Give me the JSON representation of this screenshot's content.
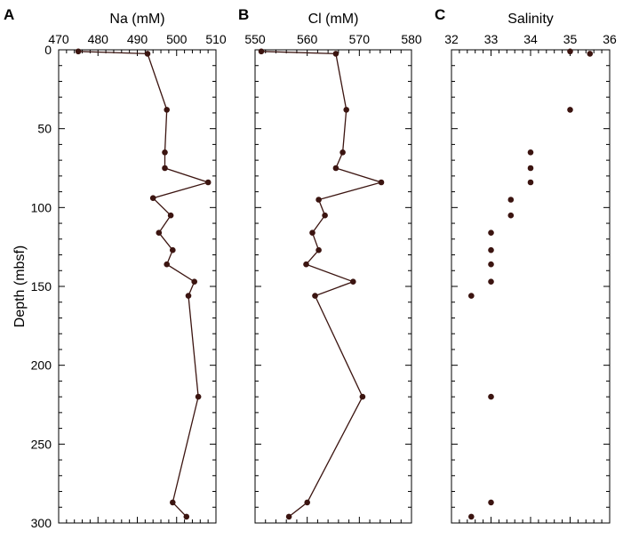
{
  "figure": {
    "y_axis_label": "Depth (mbsf)",
    "marker_color": "#3b1410"
  },
  "chart_data": [
    {
      "type": "line",
      "panel": "A",
      "xlabel": "Na (mM)",
      "ylabel": "Depth (mbsf)",
      "x_axis_position": "top",
      "xlim": [
        470,
        510
      ],
      "ylim": [
        300,
        0
      ],
      "x_ticks": [
        470,
        480,
        490,
        500,
        510
      ],
      "y_ticks": [
        0,
        50,
        100,
        150,
        200,
        250,
        300
      ],
      "grid": false,
      "markers": true,
      "connect": true,
      "points": [
        {
          "x": 475,
          "y": 1
        },
        {
          "x": 492.6,
          "y": 2.5
        },
        {
          "x": 497.5,
          "y": 38
        },
        {
          "x": 497,
          "y": 65
        },
        {
          "x": 497,
          "y": 75
        },
        {
          "x": 508,
          "y": 84
        },
        {
          "x": 494,
          "y": 94
        },
        {
          "x": 498.5,
          "y": 105
        },
        {
          "x": 495.5,
          "y": 116
        },
        {
          "x": 499,
          "y": 127
        },
        {
          "x": 497.5,
          "y": 136
        },
        {
          "x": 504.5,
          "y": 147
        },
        {
          "x": 503,
          "y": 156
        },
        {
          "x": 505.5,
          "y": 220
        },
        {
          "x": 499,
          "y": 287
        },
        {
          "x": 502.5,
          "y": 296
        }
      ]
    },
    {
      "type": "line",
      "panel": "B",
      "xlabel": "Cl (mM)",
      "ylabel": "",
      "x_axis_position": "top",
      "xlim": [
        550,
        580
      ],
      "ylim": [
        300,
        0
      ],
      "x_ticks": [
        550,
        560,
        570,
        580
      ],
      "y_ticks": [
        0,
        50,
        100,
        150,
        200,
        250,
        300
      ],
      "grid": false,
      "markers": true,
      "connect": true,
      "points": [
        {
          "x": 551.2,
          "y": 1
        },
        {
          "x": 565.5,
          "y": 2.5
        },
        {
          "x": 567.5,
          "y": 38
        },
        {
          "x": 566.8,
          "y": 65
        },
        {
          "x": 565.5,
          "y": 75
        },
        {
          "x": 574.2,
          "y": 84
        },
        {
          "x": 562.2,
          "y": 95
        },
        {
          "x": 563.4,
          "y": 105
        },
        {
          "x": 561,
          "y": 116
        },
        {
          "x": 562.2,
          "y": 127
        },
        {
          "x": 559.8,
          "y": 136
        },
        {
          "x": 568.8,
          "y": 147
        },
        {
          "x": 561.5,
          "y": 156
        },
        {
          "x": 570.6,
          "y": 220
        },
        {
          "x": 560,
          "y": 287
        },
        {
          "x": 556.5,
          "y": 296
        }
      ]
    },
    {
      "type": "scatter",
      "panel": "C",
      "xlabel": "Salinity",
      "ylabel": "",
      "x_axis_position": "top",
      "xlim": [
        32,
        36
      ],
      "ylim": [
        300,
        0
      ],
      "x_ticks": [
        32,
        33,
        34,
        35,
        36
      ],
      "y_ticks": [
        0,
        50,
        100,
        150,
        200,
        250,
        300
      ],
      "grid": false,
      "markers": true,
      "connect": false,
      "points": [
        {
          "x": 35,
          "y": 1
        },
        {
          "x": 35.5,
          "y": 2.5
        },
        {
          "x": 35,
          "y": 38
        },
        {
          "x": 34,
          "y": 65
        },
        {
          "x": 34,
          "y": 75
        },
        {
          "x": 34,
          "y": 84
        },
        {
          "x": 33.5,
          "y": 95
        },
        {
          "x": 33.5,
          "y": 105
        },
        {
          "x": 33,
          "y": 116
        },
        {
          "x": 33,
          "y": 127
        },
        {
          "x": 33,
          "y": 136
        },
        {
          "x": 33,
          "y": 147
        },
        {
          "x": 32.5,
          "y": 156
        },
        {
          "x": 33,
          "y": 220
        },
        {
          "x": 33,
          "y": 287
        },
        {
          "x": 32.5,
          "y": 296
        }
      ]
    }
  ]
}
